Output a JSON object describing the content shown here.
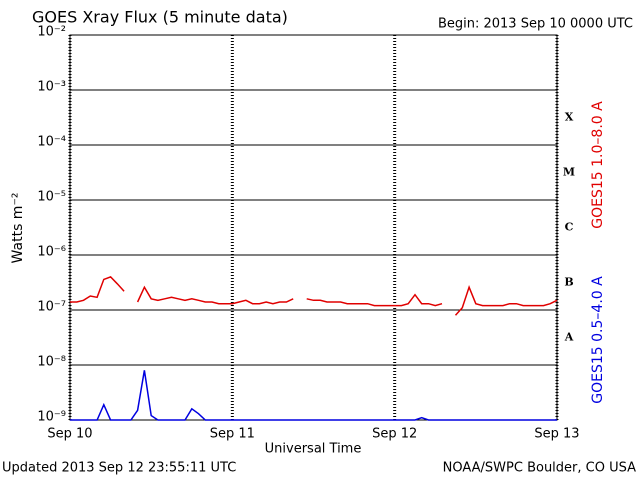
{
  "chart_data": {
    "type": "line",
    "title": "GOES Xray Flux (5 minute data)",
    "subtitle": "Begin:  2013 Sep 10 0000 UTC",
    "ylabel": "Watts m⁻²",
    "xlabel": "Universal Time",
    "footer_left": "Updated 2013 Sep 12 23:55:11 UTC",
    "footer_right": "NOAA/SWPC Boulder, CO USA",
    "ylog": true,
    "grid": true,
    "xlim": [
      0,
      72
    ],
    "xticks": [
      {
        "value": 0,
        "label": "Sep 10"
      },
      {
        "value": 24,
        "label": "Sep 11"
      },
      {
        "value": 48,
        "label": "Sep 12"
      },
      {
        "value": 72,
        "label": "Sep 13"
      }
    ],
    "ylim": [
      1e-09,
      0.01
    ],
    "yticks": [
      {
        "value": 1e-09,
        "label": "10⁻⁹"
      },
      {
        "value": 1e-08,
        "label": "10⁻⁸"
      },
      {
        "value": 1e-07,
        "label": "10⁻⁷"
      },
      {
        "value": 1e-06,
        "label": "10⁻⁶"
      },
      {
        "value": 1e-05,
        "label": "10⁻⁵"
      },
      {
        "value": 0.0001,
        "label": "10⁻⁴"
      },
      {
        "value": 0.001,
        "label": "10⁻³"
      },
      {
        "value": 0.01,
        "label": "10⁻²"
      }
    ],
    "flare_classes": [
      {
        "label": "A",
        "value": 1e-08
      },
      {
        "label": "B",
        "value": 1e-07
      },
      {
        "label": "C",
        "value": 1e-06
      },
      {
        "label": "M",
        "value": 1e-05
      },
      {
        "label": "X",
        "value": 0.0001
      }
    ],
    "x": [
      0,
      1,
      2,
      3,
      4,
      5,
      6,
      7,
      8,
      9,
      10,
      11,
      12,
      13,
      14,
      15,
      16,
      17,
      18,
      19,
      20,
      21,
      22,
      23,
      24,
      25,
      26,
      27,
      28,
      29,
      30,
      31,
      32,
      33,
      34,
      35,
      36,
      37,
      38,
      39,
      40,
      41,
      42,
      43,
      44,
      45,
      46,
      47,
      48,
      49,
      50,
      51,
      52,
      53,
      54,
      55,
      56,
      57,
      58,
      59,
      60,
      61,
      62,
      63,
      64,
      65,
      66,
      67,
      68,
      69,
      70,
      71,
      72
    ],
    "series": [
      {
        "name": "GOES15 1.0–8.0 A",
        "color": "#e00000",
        "values": [
          1.4e-07,
          1.4e-07,
          1.5e-07,
          1.8e-07,
          1.7e-07,
          3.6e-07,
          4e-07,
          3e-07,
          2.2e-07,
          null,
          1.4e-07,
          2.6e-07,
          1.6e-07,
          1.5e-07,
          1.6e-07,
          1.7e-07,
          1.6e-07,
          1.5e-07,
          1.6e-07,
          1.5e-07,
          1.4e-07,
          1.4e-07,
          1.3e-07,
          1.3e-07,
          1.3e-07,
          1.4e-07,
          1.5e-07,
          1.3e-07,
          1.3e-07,
          1.4e-07,
          1.3e-07,
          1.4e-07,
          1.4e-07,
          1.6e-07,
          null,
          1.6e-07,
          1.5e-07,
          1.5e-07,
          1.4e-07,
          1.4e-07,
          1.4e-07,
          1.3e-07,
          1.3e-07,
          1.3e-07,
          1.3e-07,
          1.2e-07,
          1.2e-07,
          1.2e-07,
          1.2e-07,
          1.2e-07,
          1.3e-07,
          1.9e-07,
          1.3e-07,
          1.3e-07,
          1.2e-07,
          1.3e-07,
          null,
          8e-08,
          1.1e-07,
          2.6e-07,
          1.3e-07,
          1.2e-07,
          1.2e-07,
          1.2e-07,
          1.2e-07,
          1.3e-07,
          1.3e-07,
          1.2e-07,
          1.2e-07,
          1.2e-07,
          1.2e-07,
          1.3e-07,
          1.5e-07
        ]
      },
      {
        "name": "GOES15 0.5–4.0 A",
        "color": "#0000e0",
        "values": [
          1e-09,
          1e-09,
          1e-09,
          1e-09,
          1e-09,
          1.9e-09,
          1e-09,
          1e-09,
          1e-09,
          1e-09,
          1.5e-09,
          8e-09,
          1.2e-09,
          1e-09,
          1e-09,
          1e-09,
          1e-09,
          1e-09,
          1.6e-09,
          1.3e-09,
          1e-09,
          1e-09,
          1e-09,
          1e-09,
          1e-09,
          1e-09,
          1e-09,
          1e-09,
          1e-09,
          1e-09,
          1e-09,
          1e-09,
          1e-09,
          1e-09,
          1e-09,
          1e-09,
          1e-09,
          1e-09,
          1e-09,
          1e-09,
          1e-09,
          1e-09,
          1e-09,
          1e-09,
          1e-09,
          1e-09,
          1e-09,
          1e-09,
          1e-09,
          1e-09,
          1e-09,
          1e-09,
          1.1e-09,
          1e-09,
          1e-09,
          1e-09,
          1e-09,
          1e-09,
          1e-09,
          1e-09,
          1e-09,
          1e-09,
          1e-09,
          1e-09,
          1e-09,
          1e-09,
          1e-09,
          1e-09,
          1e-09,
          1e-09,
          1e-09,
          1e-09,
          1e-09
        ]
      }
    ]
  }
}
